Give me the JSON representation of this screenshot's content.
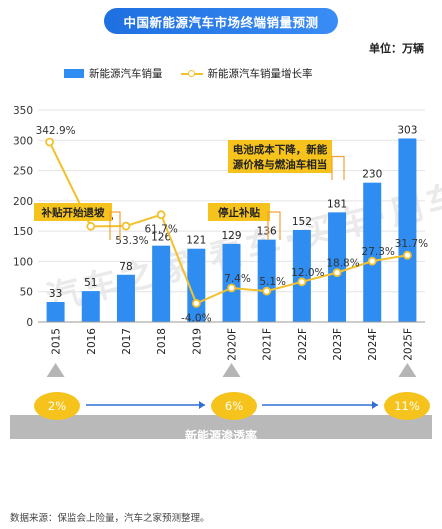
{
  "title": "中国新能源汽车市场终端销量预测",
  "unit": "单位：万辆",
  "legend": {
    "bars": "新能源汽车销量",
    "line": "新能源汽车销量增长率"
  },
  "watermark": "汽车之家  看车·买车·用车",
  "chart_data": {
    "type": "bar",
    "categories": [
      "2015",
      "2016",
      "2017",
      "2018",
      "2019",
      "2020F",
      "2021F",
      "2022F",
      "2023F",
      "2024F",
      "2025F"
    ],
    "series": [
      {
        "name": "新能源汽车销量",
        "type": "bar",
        "values": [
          33,
          51,
          78,
          126,
          121,
          129,
          136,
          152,
          181,
          230,
          303
        ],
        "labels": [
          "33",
          "51",
          "78",
          "126",
          "121",
          "129",
          "136",
          "152",
          "181",
          "230",
          "303"
        ]
      },
      {
        "name": "新能源汽车销量增长率",
        "type": "line",
        "values": [
          342.9,
          53.1,
          53.3,
          61.7,
          -4.0,
          7.4,
          5.1,
          12.0,
          18.8,
          27.3,
          31.7
        ],
        "labels": [
          "342.9%",
          "53.1%",
          "53.3%",
          "61.7%",
          "-4.0%",
          "7.4%",
          "5.1%",
          "12.0%",
          "18.8%",
          "27.3%",
          "31.7%"
        ]
      }
    ],
    "yticks": [
      0,
      50,
      100,
      150,
      200,
      250,
      300,
      350
    ],
    "ylim": [
      0,
      350
    ],
    "annotations": [
      "补贴开始退坡",
      "停止补贴",
      "电池成本下降，新能源价格与燃油车相当"
    ],
    "colors": {
      "bar": "#2f8df1",
      "line": "#f2c12e",
      "annotation_bg": "#f5c31c"
    }
  },
  "penetration": {
    "label": "新能源渗透率",
    "values": [
      "2%",
      "6%",
      "11%"
    ]
  },
  "source": "数据来源：保监会上险量，汽车之家预测整理。"
}
